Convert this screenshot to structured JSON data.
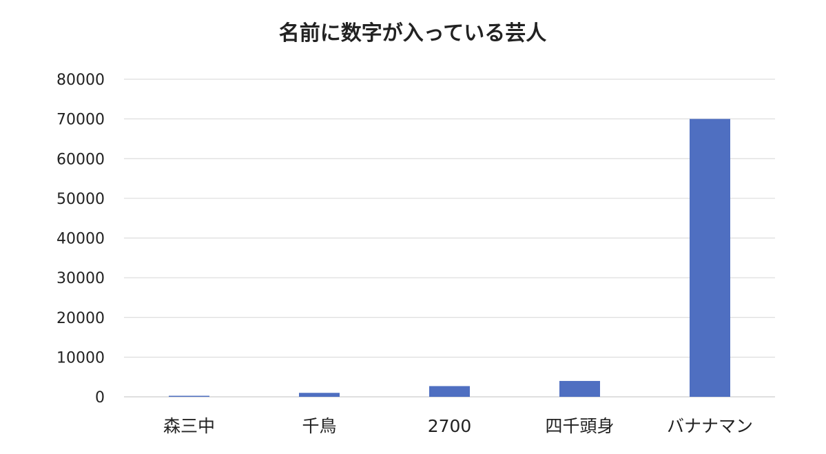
{
  "chart_data": {
    "type": "bar",
    "title": "名前に数字が入っている芸人",
    "categories": [
      "森三中",
      "千鳥",
      "2700",
      "四千頭身",
      "バナナマン"
    ],
    "values": [
      3,
      1000,
      2700,
      4000,
      70000
    ],
    "ylim": [
      0,
      80000
    ],
    "yticks": [
      0,
      10000,
      20000,
      30000,
      40000,
      50000,
      60000,
      70000,
      80000
    ],
    "grid": true,
    "legend": "none",
    "colors": {
      "bar": "#4F6FC1",
      "grid": "#D6D6D6",
      "text": "#222222"
    }
  }
}
